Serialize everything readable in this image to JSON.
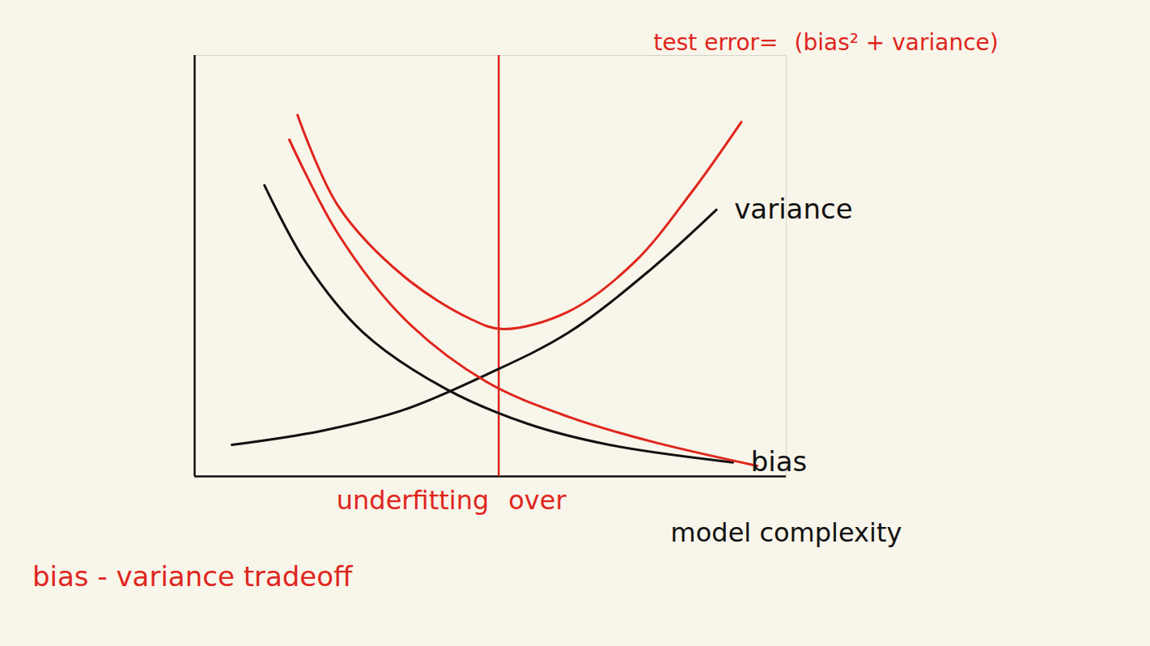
{
  "chart_data": {
    "type": "line",
    "xlabel": "model complexity",
    "xlim": [
      0,
      10
    ],
    "ylim": [
      0,
      12
    ],
    "tick_labels": false,
    "series": [
      {
        "name": "variance",
        "color": "#111111",
        "x": [
          0.63,
          2.15,
          3.54,
          4.93,
          6.32,
          7.71,
          8.82
        ],
        "values": [
          0.9,
          1.3,
          1.9,
          2.9,
          4.1,
          5.9,
          7.6
        ]
      },
      {
        "name": "bias",
        "color": "#111111",
        "x": [
          1.18,
          1.88,
          2.85,
          4.24,
          5.63,
          7.01,
          9.1
        ],
        "values": [
          8.3,
          6.1,
          4.1,
          2.5,
          1.5,
          0.9,
          0.4
        ]
      },
      {
        "name": null,
        "color": "#e0251d",
        "x": [
          1.6,
          2.43,
          3.54,
          4.93,
          6.32,
          7.71,
          9.51
        ],
        "values": [
          9.6,
          6.9,
          4.5,
          2.7,
          1.7,
          1.0,
          0.3
        ]
      },
      {
        "name": "test error=",
        "color": "#e0251d",
        "x": [
          1.74,
          2.43,
          3.54,
          4.65,
          5.21,
          6.32,
          7.43,
          8.4,
          9.24
        ],
        "values": [
          10.3,
          7.7,
          5.7,
          4.5,
          4.2,
          4.7,
          6.1,
          8.1,
          10.1
        ]
      }
    ],
    "annotations": {
      "formula": "(bias² + variance)",
      "underfit": "underfitting",
      "overfit": "over"
    },
    "optimal_complexity": 5.14,
    "caption": "bias - variance tradeoff"
  }
}
